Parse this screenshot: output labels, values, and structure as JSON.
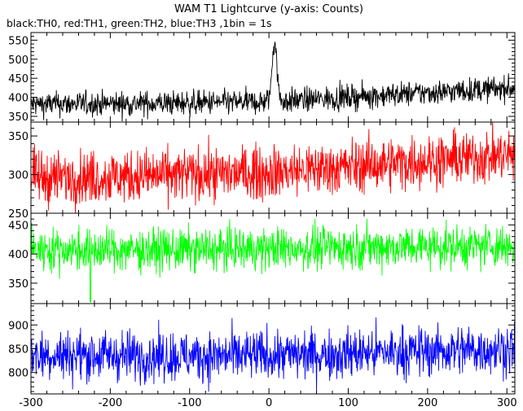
{
  "chart_data": {
    "type": "line",
    "title": "WAM T1 Lightcurve (y-axis: Counts)",
    "subtitle": "black:TH0, red:TH1, green:TH2, blue:TH3 ,1bin = 1s",
    "xlim": [
      -300,
      310
    ],
    "x_ticks": [
      "-300",
      "-200",
      "-100",
      "0",
      "100",
      "200",
      "300"
    ],
    "x_tick_values": [
      -300,
      -200,
      -100,
      0,
      100,
      200,
      300
    ],
    "grid": false,
    "panels": [
      {
        "series": "TH0",
        "color": "#000000",
        "ylim": [
          335,
          570
        ],
        "y_ticks": [
          "350",
          "400",
          "450",
          "500",
          "550"
        ],
        "y_tick_values": [
          350,
          400,
          450,
          500,
          550
        ],
        "noise": 16,
        "trend": [
          [
            -300,
            382
          ],
          [
            -200,
            383
          ],
          [
            -100,
            385
          ],
          [
            0,
            388
          ],
          [
            100,
            400
          ],
          [
            200,
            412
          ],
          [
            310,
            425
          ]
        ],
        "peak": {
          "x": 7,
          "amp": 160,
          "width": 3
        }
      },
      {
        "series": "TH1",
        "color": "#ff0000",
        "ylim": [
          250,
          368
        ],
        "y_ticks": [
          "250",
          "300",
          "350"
        ],
        "y_tick_values": [
          250,
          300,
          350
        ],
        "noise": 17,
        "trend": [
          [
            -300,
            296
          ],
          [
            -200,
            297
          ],
          [
            -100,
            300
          ],
          [
            0,
            303
          ],
          [
            100,
            310
          ],
          [
            200,
            318
          ],
          [
            310,
            326
          ]
        ]
      },
      {
        "series": "TH2",
        "color": "#00ff00",
        "ylim": [
          315,
          470
        ],
        "y_ticks": [
          "350",
          "400",
          "450"
        ],
        "y_tick_values": [
          350,
          400,
          450
        ],
        "noise": 18,
        "trend": [
          [
            -300,
            408
          ],
          [
            -200,
            407
          ],
          [
            -100,
            407
          ],
          [
            0,
            409
          ],
          [
            100,
            412
          ],
          [
            200,
            413
          ],
          [
            310,
            414
          ]
        ],
        "dip": {
          "x": -225,
          "value": 318
        }
      },
      {
        "series": "TH3",
        "color": "#0000ff",
        "ylim": [
          755,
          945
        ],
        "y_ticks": [
          "800",
          "850",
          "900"
        ],
        "y_tick_values": [
          800,
          850,
          900
        ],
        "noise": 26,
        "trend": [
          [
            -300,
            838
          ],
          [
            -200,
            836
          ],
          [
            -100,
            834
          ],
          [
            0,
            836
          ],
          [
            100,
            840
          ],
          [
            200,
            845
          ],
          [
            310,
            850
          ]
        ]
      }
    ]
  }
}
